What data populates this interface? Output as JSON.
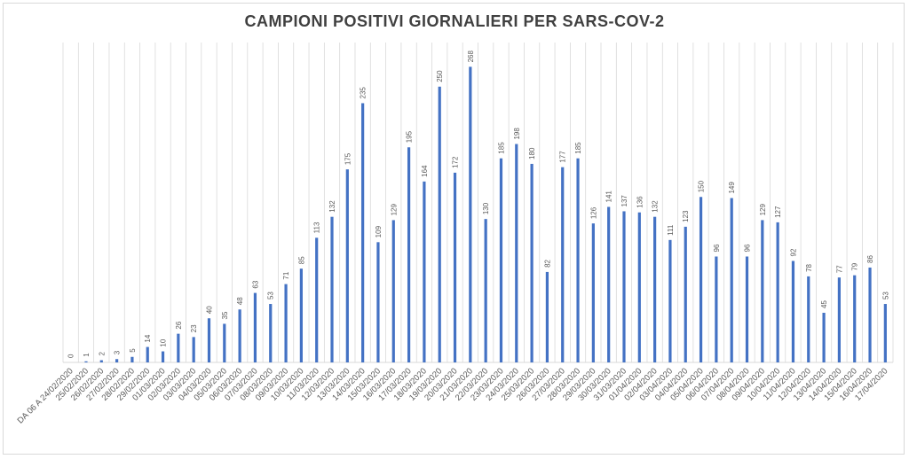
{
  "chart_data": {
    "type": "bar",
    "title": "CAMPIONI POSITIVI GIORNALIERI PER SARS-COV-2",
    "xlabel": "",
    "ylabel": "",
    "ylim": [
      0,
      290
    ],
    "grid": "vertical",
    "legend": "none",
    "bar_color": "#4472c4",
    "grid_color": "#d9d9d9",
    "categories": [
      "DA 06 A 24/02/2020",
      "25/02/2020",
      "26/02/2020",
      "27/02/2020",
      "28/02/2020",
      "29/02/2020",
      "01/03/2020",
      "02/03/2020",
      "03/03/2020",
      "04/03/2020",
      "05/03/2020",
      "06/03/2020",
      "07/03/2020",
      "08/03/2020",
      "09/03/2020",
      "10/03/2020",
      "11/03/2020",
      "12/03/2020",
      "13/03/2020",
      "14/03/2020",
      "15/03/2020",
      "16/03/2020",
      "17/03/2020",
      "18/03/2020",
      "19/03/2020",
      "20/03/2020",
      "21/03/2020",
      "22/03/2020",
      "23/03/2020",
      "24/03/2020",
      "25/03/2020",
      "26/03/2020",
      "27/03/2020",
      "28/03/2020",
      "29/03/2020",
      "30/03/2020",
      "31/03/2020",
      "01/04/2020",
      "02/04/2020",
      "03/04/2020",
      "04/04/2020",
      "05/04/2020",
      "06/04/2020",
      "07/04/2020",
      "08/04/2020",
      "09/04/2020",
      "10/04/2020",
      "11/04/2020",
      "12/04/2020",
      "13/04/2020",
      "14/04/2020",
      "15/04/2020",
      "16/04/2020",
      "17/04/2020"
    ],
    "values": [
      0,
      1,
      2,
      3,
      5,
      14,
      10,
      26,
      23,
      40,
      35,
      48,
      63,
      53,
      71,
      85,
      113,
      132,
      175,
      235,
      109,
      129,
      195,
      164,
      250,
      172,
      268,
      130,
      185,
      198,
      180,
      82,
      177,
      185,
      126,
      141,
      137,
      136,
      132,
      111,
      123,
      150,
      96,
      149,
      96,
      129,
      127,
      92,
      78,
      45,
      77,
      79,
      86,
      53
    ]
  }
}
